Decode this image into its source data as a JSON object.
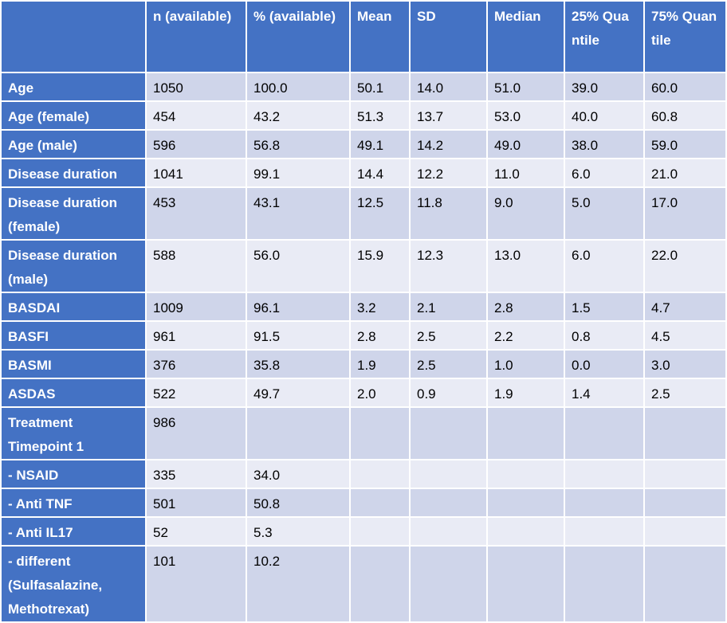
{
  "header": {
    "columns": [
      "",
      "n (available)",
      "% (available)",
      "Mean",
      "SD",
      "Median",
      "25% Quantile",
      "75% Quantile"
    ]
  },
  "rows": [
    {
      "label": "Age",
      "cells": [
        "1050",
        "100.0",
        "50.1",
        "14.0",
        "51.0",
        "39.0",
        "60.0"
      ]
    },
    {
      "label": "Age (female)",
      "cells": [
        "454",
        "43.2",
        "51.3",
        "13.7",
        "53.0",
        "40.0",
        "60.8"
      ]
    },
    {
      "label": "Age (male)",
      "cells": [
        "596",
        "56.8",
        "49.1",
        "14.2",
        "49.0",
        "38.0",
        "59.0"
      ]
    },
    {
      "label": "Disease duration",
      "cells": [
        "1041",
        "99.1",
        "14.4",
        "12.2",
        "11.0",
        "6.0",
        "21.0"
      ]
    },
    {
      "label": "Disease duration (female)",
      "cells": [
        "453",
        "43.1",
        "12.5",
        "11.8",
        "9.0",
        "5.0",
        "17.0"
      ]
    },
    {
      "label": "Disease duration (male)",
      "cells": [
        "588",
        "56.0",
        "15.9",
        "12.3",
        "13.0",
        "6.0",
        "22.0"
      ]
    },
    {
      "label": "BASDAI",
      "cells": [
        "1009",
        "96.1",
        "3.2",
        "2.1",
        "2.8",
        "1.5",
        "4.7"
      ]
    },
    {
      "label": "BASFI",
      "cells": [
        "961",
        "91.5",
        "2.8",
        "2.5",
        "2.2",
        "0.8",
        "4.5"
      ]
    },
    {
      "label": "BASMI",
      "cells": [
        "376",
        "35.8",
        "1.9",
        "2.5",
        "1.0",
        "0.0",
        "3.0"
      ]
    },
    {
      "label": "ASDAS",
      "cells": [
        "522",
        "49.7",
        "2.0",
        "0.9",
        "1.9",
        "1.4",
        "2.5"
      ]
    },
    {
      "label": "Treatment Timepoint 1",
      "cells": [
        "986",
        "",
        "",
        "",
        "",
        "",
        ""
      ]
    },
    {
      "label": "- NSAID",
      "cells": [
        "335",
        "34.0",
        "",
        "",
        "",
        "",
        ""
      ]
    },
    {
      "label": "- Anti TNF",
      "cells": [
        "501",
        "50.8",
        "",
        "",
        "",
        "",
        ""
      ]
    },
    {
      "label": "- Anti IL17",
      "cells": [
        "52",
        "5.3",
        "",
        "",
        "",
        "",
        ""
      ]
    },
    {
      "label": "- different (Sulfasalazine, Methotrexat)",
      "cells": [
        "101",
        "10.2",
        "",
        "",
        "",
        "",
        ""
      ]
    }
  ],
  "colors": {
    "header_bg": "#4472c4",
    "band_dark": "#cfd5ea",
    "band_light": "#e9ebf5"
  }
}
